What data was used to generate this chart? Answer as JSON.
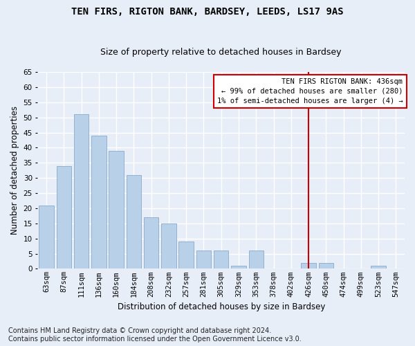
{
  "title": "TEN FIRS, RIGTON BANK, BARDSEY, LEEDS, LS17 9AS",
  "subtitle": "Size of property relative to detached houses in Bardsey",
  "xlabel": "Distribution of detached houses by size in Bardsey",
  "ylabel": "Number of detached properties",
  "categories": [
    "63sqm",
    "87sqm",
    "111sqm",
    "136sqm",
    "160sqm",
    "184sqm",
    "208sqm",
    "232sqm",
    "257sqm",
    "281sqm",
    "305sqm",
    "329sqm",
    "353sqm",
    "378sqm",
    "402sqm",
    "426sqm",
    "450sqm",
    "474sqm",
    "499sqm",
    "523sqm",
    "547sqm"
  ],
  "values": [
    21,
    34,
    51,
    44,
    39,
    31,
    17,
    15,
    9,
    6,
    6,
    1,
    6,
    0,
    0,
    2,
    2,
    0,
    0,
    1,
    0
  ],
  "bar_color": "#b8d0e8",
  "bar_edge_color": "#88aacc",
  "background_color": "#e8eef8",
  "grid_color": "#ffffff",
  "ylim": [
    0,
    65
  ],
  "yticks": [
    0,
    5,
    10,
    15,
    20,
    25,
    30,
    35,
    40,
    45,
    50,
    55,
    60,
    65
  ],
  "annotation_box_text": "TEN FIRS RIGTON BANK: 436sqm\n← 99% of detached houses are smaller (280)\n1% of semi-detached houses are larger (4) →",
  "annotation_box_color": "#cc0000",
  "vline_x_index": 15,
  "vline_color": "#cc0000",
  "footer_line1": "Contains HM Land Registry data © Crown copyright and database right 2024.",
  "footer_line2": "Contains public sector information licensed under the Open Government Licence v3.0.",
  "title_fontsize": 10,
  "subtitle_fontsize": 9,
  "xlabel_fontsize": 8.5,
  "ylabel_fontsize": 8.5,
  "tick_fontsize": 7.5,
  "annotation_fontsize": 7.5,
  "footer_fontsize": 7
}
